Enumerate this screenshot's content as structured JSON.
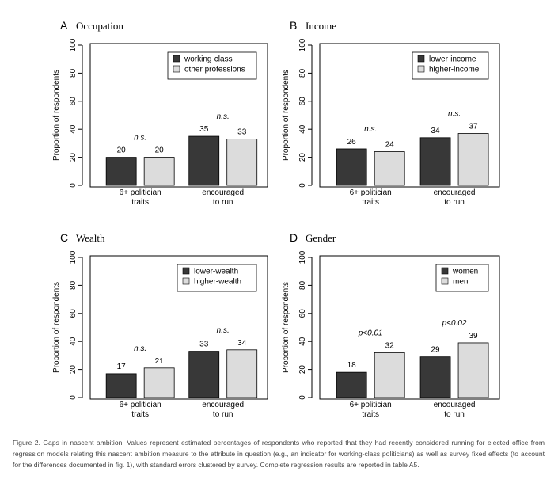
{
  "chart_data": [
    {
      "type": "bar",
      "letter": "A",
      "title": "Occupation",
      "ylabel": "Proportion of respondents",
      "ylim": [
        0,
        100
      ],
      "yticks": [
        0,
        20,
        40,
        60,
        80,
        100
      ],
      "categories": [
        [
          "6+ politician",
          "traits"
        ],
        [
          "encouraged",
          "to run"
        ]
      ],
      "series": [
        {
          "name": "working-class",
          "values": [
            20,
            35
          ],
          "color": "#383838"
        },
        {
          "name": "other professions",
          "values": [
            20,
            33
          ],
          "color": "#dcdcdc"
        }
      ],
      "annotations": [
        "n.s.",
        "n.s."
      ],
      "legend_position": "top-right"
    },
    {
      "type": "bar",
      "letter": "B",
      "title": "Income",
      "ylabel": "Proportion of respondents",
      "ylim": [
        0,
        100
      ],
      "yticks": [
        0,
        20,
        40,
        60,
        80,
        100
      ],
      "categories": [
        [
          "6+ politician",
          "traits"
        ],
        [
          "encouraged",
          "to run"
        ]
      ],
      "series": [
        {
          "name": "lower-income",
          "values": [
            26,
            34
          ],
          "color": "#383838"
        },
        {
          "name": "higher-income",
          "values": [
            24,
            37
          ],
          "color": "#dcdcdc"
        }
      ],
      "annotations": [
        "n.s.",
        "n.s."
      ],
      "legend_position": "top-right"
    },
    {
      "type": "bar",
      "letter": "C",
      "title": "Wealth",
      "ylabel": "Proportion of respondents",
      "ylim": [
        0,
        100
      ],
      "yticks": [
        0,
        20,
        40,
        60,
        80,
        100
      ],
      "categories": [
        [
          "6+ politician",
          "traits"
        ],
        [
          "encouraged",
          "to run"
        ]
      ],
      "series": [
        {
          "name": "lower-wealth",
          "values": [
            17,
            33
          ],
          "color": "#383838"
        },
        {
          "name": "higher-wealth",
          "values": [
            21,
            34
          ],
          "color": "#dcdcdc"
        }
      ],
      "annotations": [
        "n.s.",
        "n.s."
      ],
      "legend_position": "top-right"
    },
    {
      "type": "bar",
      "letter": "D",
      "title": "Gender",
      "ylabel": "Proportion of respondents",
      "ylim": [
        0,
        100
      ],
      "yticks": [
        0,
        20,
        40,
        60,
        80,
        100
      ],
      "categories": [
        [
          "6+ politician",
          "traits"
        ],
        [
          "encouraged",
          "to run"
        ]
      ],
      "series": [
        {
          "name": "women",
          "values": [
            18,
            29
          ],
          "color": "#383838"
        },
        {
          "name": "men",
          "values": [
            32,
            39
          ],
          "color": "#dcdcdc"
        }
      ],
      "annotations": [
        "p<0.01",
        "p<0.02"
      ],
      "legend_position": "top-right"
    }
  ],
  "caption": "Figure 2. Gaps in nascent ambition. Values represent estimated percentages of respondents who reported that they had recently considered running for elected office from regression models relating this nascent ambition measure to the attribute in question (e.g., an indicator for working-class politicians) as well as survey fixed effects (to account for the differences documented in fig. 1), with standard errors clustered by survey. Complete regression results are reported in table A5."
}
